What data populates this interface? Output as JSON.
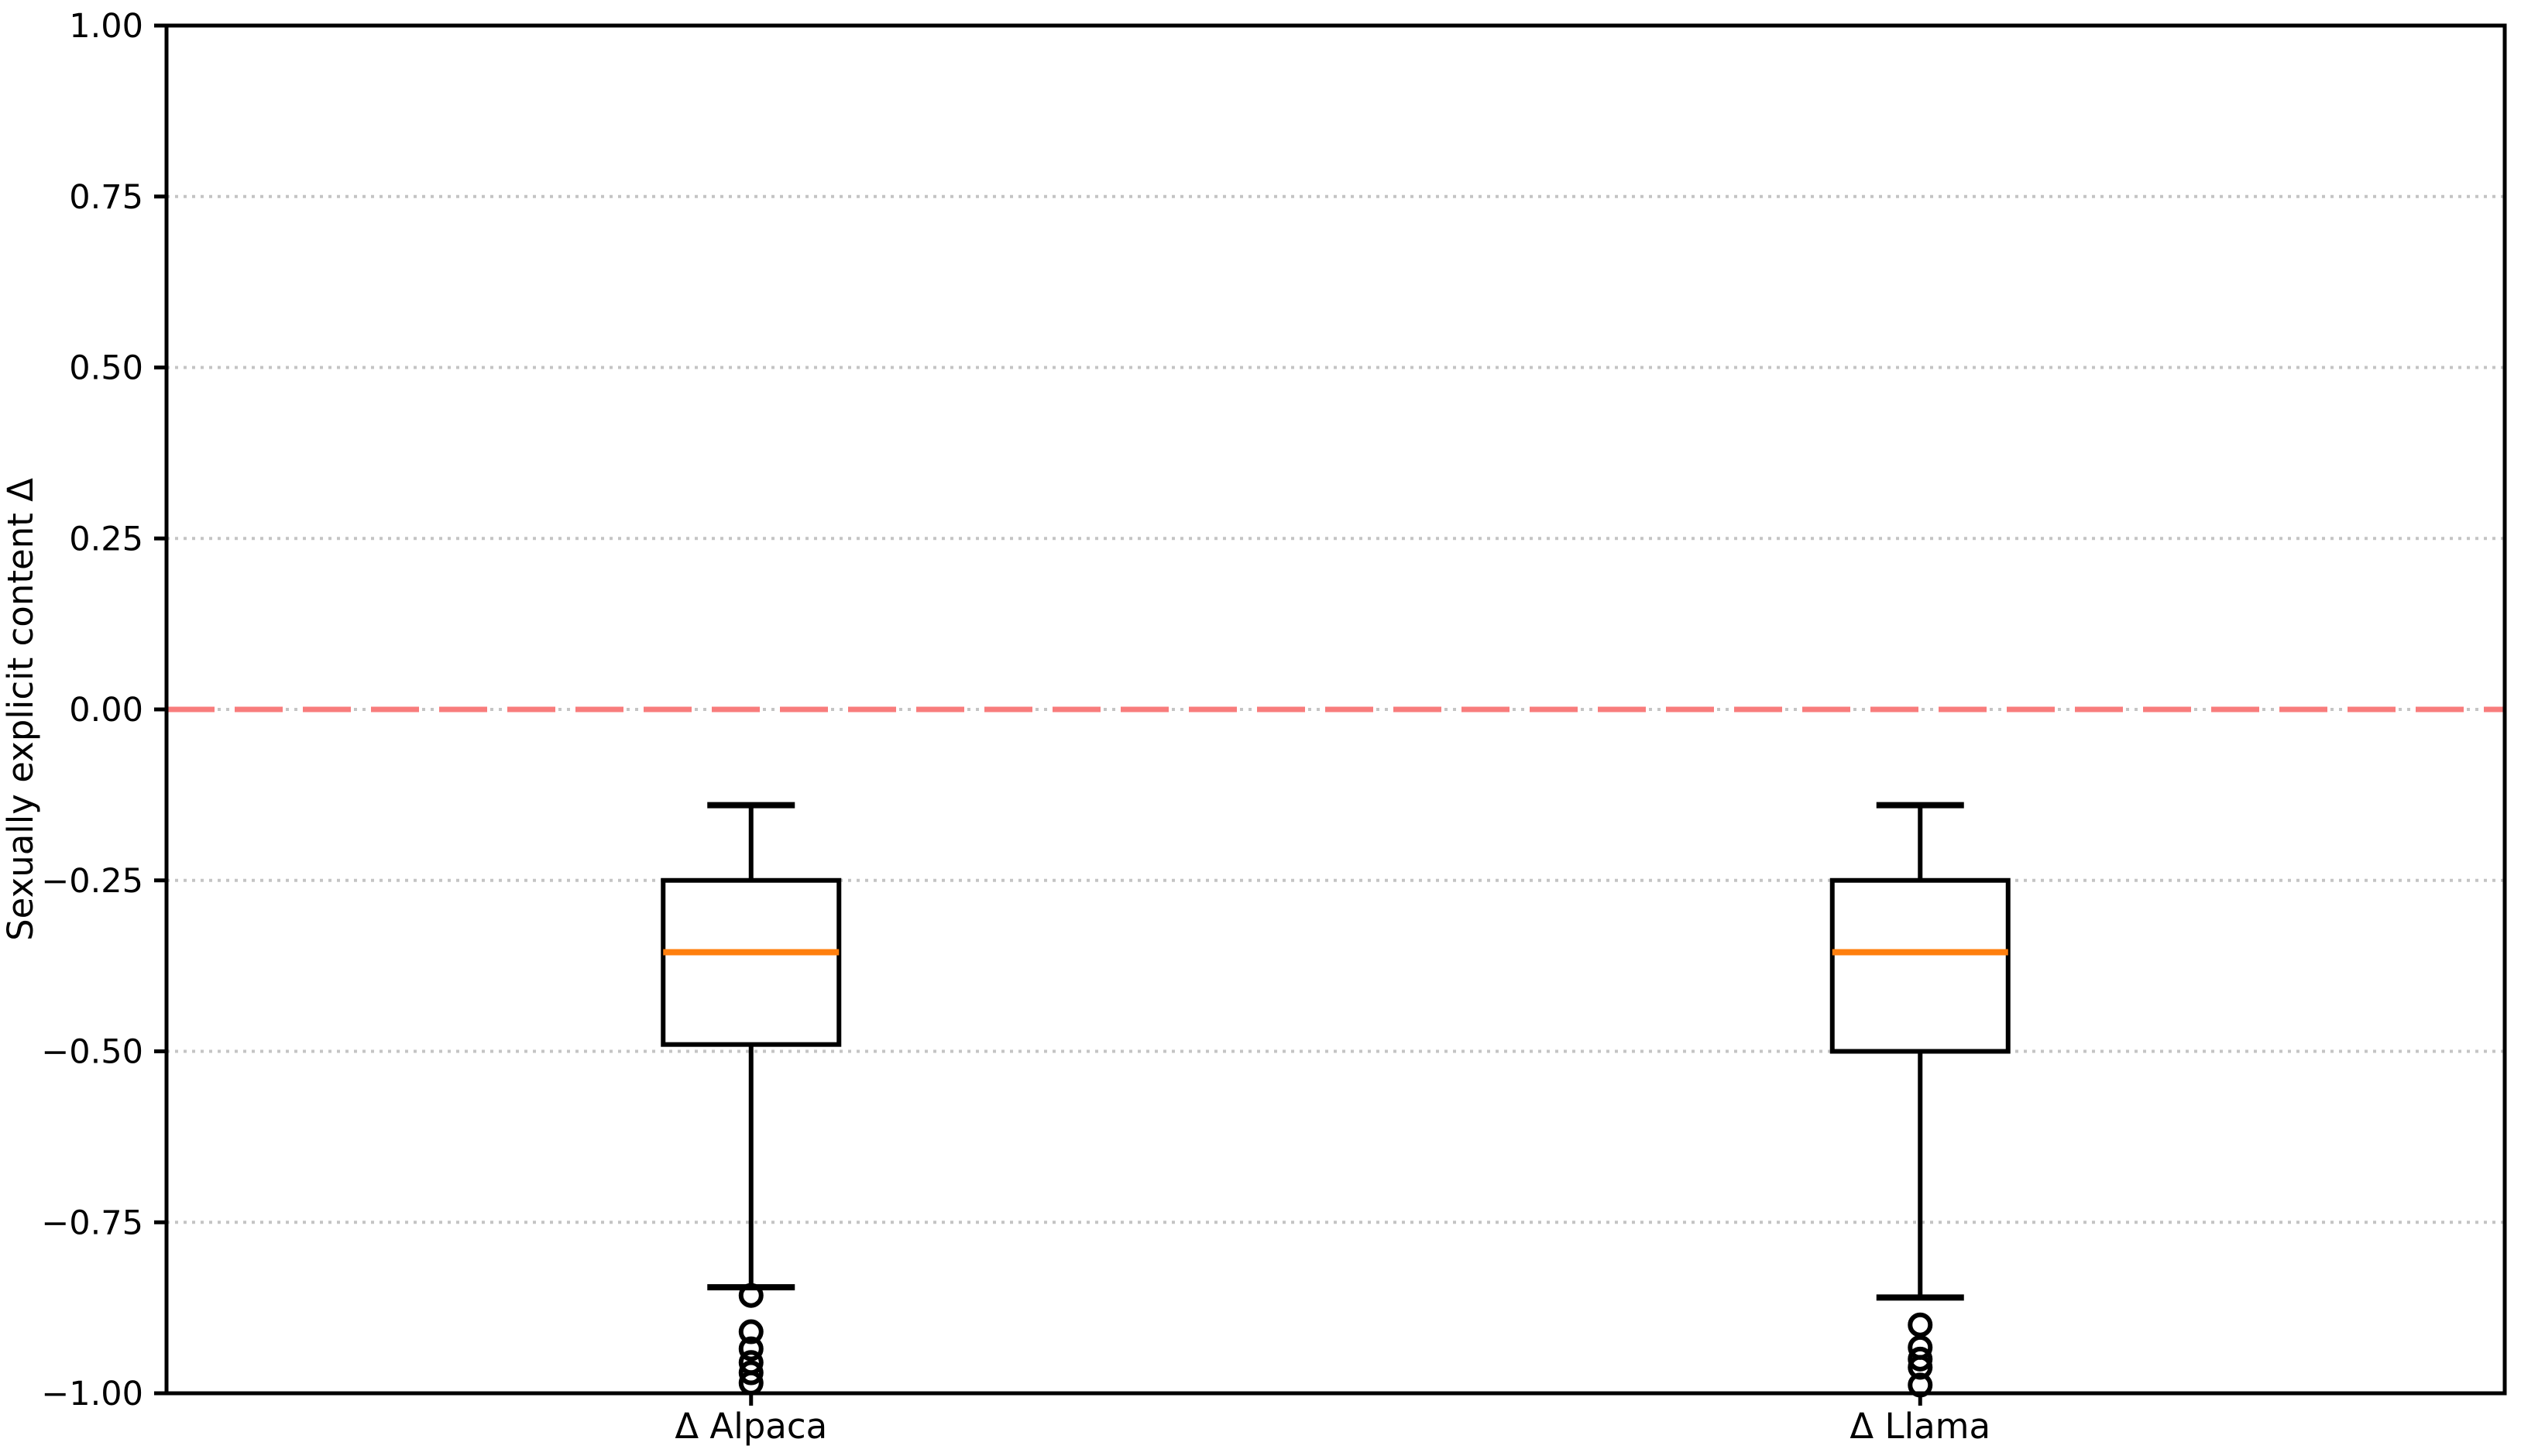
{
  "chart_data": {
    "type": "boxplot",
    "title": "",
    "xlabel": "",
    "ylabel": "Sexually explicit content Δ",
    "ylim": [
      -1.0,
      1.0
    ],
    "yticks": [
      1.0,
      0.75,
      0.5,
      0.25,
      0.0,
      -0.25,
      -0.5,
      -0.75,
      -1.0
    ],
    "ytick_labels": [
      "1.00",
      "0.75",
      "0.50",
      "0.25",
      "0.00",
      "−0.25",
      "−0.50",
      "−0.75",
      "−1.00"
    ],
    "categories": [
      "Δ Alpaca",
      "Δ Llama"
    ],
    "grid": "horizontal-dotted",
    "legend": "none",
    "reference_line": {
      "y": 0.0,
      "style": "dashed"
    },
    "series": [
      {
        "name": "Δ Alpaca",
        "whisker_high": -0.14,
        "q3": -0.25,
        "median": -0.355,
        "q1": -0.49,
        "whisker_low": -0.845,
        "outliers": [
          -0.857,
          -0.91,
          -0.935,
          -0.955,
          -0.97,
          -0.985
        ]
      },
      {
        "name": "Δ Llama",
        "whisker_high": -0.14,
        "q3": -0.25,
        "median": -0.355,
        "q1": -0.5,
        "whisker_low": -0.86,
        "outliers": [
          -0.9,
          -0.933,
          -0.95,
          -0.962,
          -0.988
        ]
      }
    ],
    "colors": {
      "box_line": "#000000",
      "median_line": "#ff7f0e",
      "zero_line": "#f87c7c",
      "gridline": "#c4c4c4",
      "background": "#ffffff"
    }
  }
}
